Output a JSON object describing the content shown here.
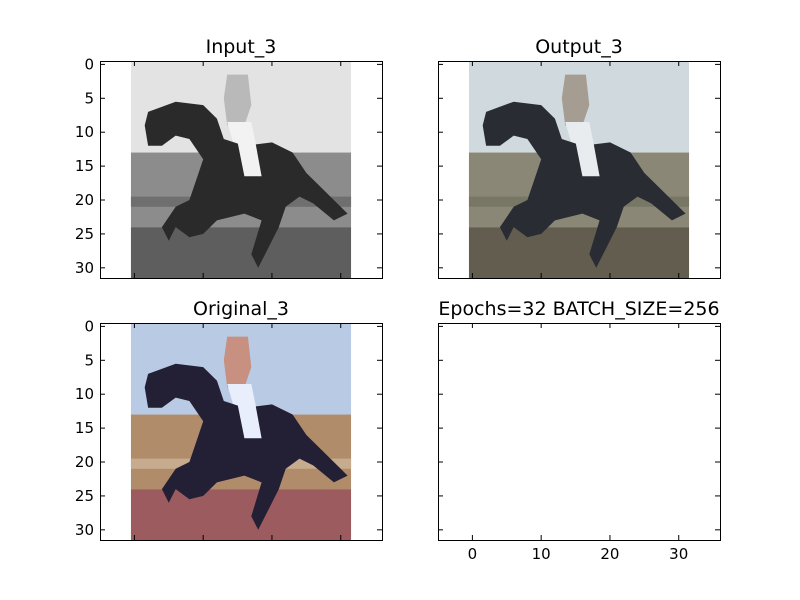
{
  "figure": {
    "title": "Epochs=32 BATCH_SIZE=256"
  },
  "chart_data": [
    {
      "type": "image",
      "title": "Input_3",
      "colormap": "grayscale",
      "xlim": [
        -5,
        36
      ],
      "ylim": [
        31.5,
        -0.5
      ],
      "xticks": [],
      "yticks": [
        0,
        5,
        10,
        15,
        20,
        25,
        30
      ],
      "image_extent": [
        -0.5,
        31.5,
        31.5,
        -0.5
      ],
      "palette": {
        "sky": "#e3e3e3",
        "ground": "#8c8c8c",
        "horse": "#2a2a2a",
        "rider": "#b9b9b9",
        "shirt": "#f2f2f2",
        "rail": "#6f6f6f",
        "track": "#5e5e5e"
      }
    },
    {
      "type": "image",
      "title": "Output_3",
      "colormap": "rgb",
      "xlim": [
        -5,
        36
      ],
      "ylim": [
        31.5,
        -0.5
      ],
      "xticks": [],
      "yticks": [],
      "image_extent": [
        -0.5,
        31.5,
        31.5,
        -0.5
      ],
      "palette": {
        "sky": "#cfd9de",
        "ground": "#8a8777",
        "horse": "#2a2c33",
        "rider": "#a59d92",
        "shirt": "#e9ecef",
        "rail": "#787766",
        "track": "#625d4f"
      }
    },
    {
      "type": "image",
      "title": "Original_3",
      "colormap": "rgb",
      "xlim": [
        -5,
        36
      ],
      "ylim": [
        31.5,
        -0.5
      ],
      "xticks": [],
      "yticks": [
        0,
        5,
        10,
        15,
        20,
        25,
        30
      ],
      "image_extent": [
        -0.5,
        31.5,
        31.5,
        -0.5
      ],
      "palette": {
        "sky": "#b9cbe4",
        "ground": "#b08c6a",
        "horse": "#231f34",
        "rider": "#c79080",
        "shirt": "#e8eefb",
        "rail": "#c7ab8e",
        "track": "#9c5b5e"
      }
    },
    {
      "type": "empty",
      "title": "Epochs=32 BATCH_SIZE=256",
      "xlim": [
        -5,
        36
      ],
      "xticks": [
        0,
        10,
        20,
        30
      ],
      "yticks": []
    }
  ]
}
